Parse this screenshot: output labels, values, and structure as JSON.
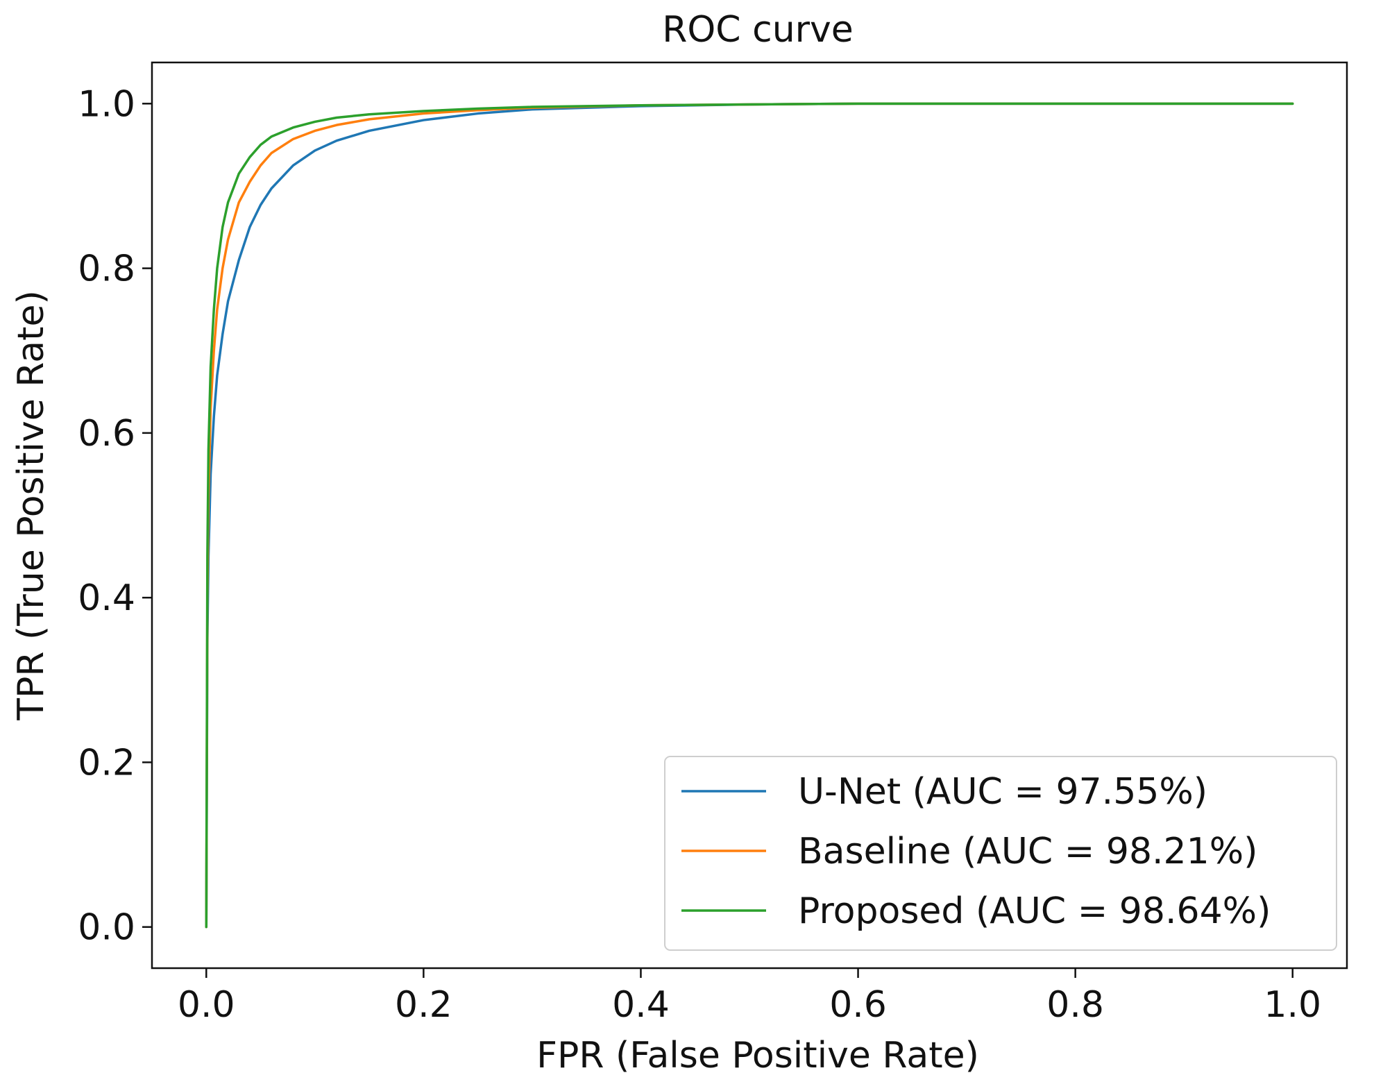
{
  "chart_data": {
    "type": "line",
    "title": "ROC curve",
    "xlabel": "FPR (False Positive Rate)",
    "ylabel": "TPR (True Positive Rate)",
    "xlim": [
      -0.05,
      1.05
    ],
    "ylim": [
      -0.05,
      1.05
    ],
    "xticks": [
      0.0,
      0.2,
      0.4,
      0.6,
      0.8,
      1.0
    ],
    "yticks": [
      0.0,
      0.2,
      0.4,
      0.6,
      0.8,
      1.0
    ],
    "xtick_labels": [
      "0.0",
      "0.2",
      "0.4",
      "0.6",
      "0.8",
      "1.0"
    ],
    "ytick_labels": [
      "0.0",
      "0.2",
      "0.4",
      "0.6",
      "0.8",
      "1.0"
    ],
    "grid": false,
    "legend_position": "lower-right",
    "series": [
      {
        "name": "U-Net (AUC = 97.55%)",
        "color": "#1f77b4",
        "x": [
          0.0,
          0.001,
          0.002,
          0.004,
          0.007,
          0.01,
          0.015,
          0.02,
          0.03,
          0.04,
          0.05,
          0.06,
          0.08,
          0.1,
          0.12,
          0.15,
          0.2,
          0.25,
          0.3,
          0.4,
          0.5,
          0.6,
          0.7,
          0.8,
          0.9,
          1.0
        ],
        "y": [
          0.0,
          0.35,
          0.45,
          0.55,
          0.62,
          0.67,
          0.72,
          0.76,
          0.81,
          0.85,
          0.877,
          0.897,
          0.925,
          0.943,
          0.955,
          0.967,
          0.98,
          0.988,
          0.993,
          0.997,
          0.999,
          1.0,
          1.0,
          1.0,
          1.0,
          1.0
        ]
      },
      {
        "name": "Baseline (AUC = 98.21%)",
        "color": "#ff7f0e",
        "x": [
          0.0,
          0.001,
          0.002,
          0.004,
          0.007,
          0.01,
          0.015,
          0.02,
          0.03,
          0.04,
          0.05,
          0.06,
          0.08,
          0.1,
          0.12,
          0.15,
          0.2,
          0.25,
          0.3,
          0.4,
          0.5,
          0.6,
          0.7,
          0.8,
          0.9,
          1.0
        ],
        "y": [
          0.0,
          0.4,
          0.52,
          0.63,
          0.7,
          0.75,
          0.8,
          0.835,
          0.88,
          0.905,
          0.925,
          0.94,
          0.957,
          0.967,
          0.974,
          0.981,
          0.988,
          0.992,
          0.995,
          0.998,
          0.999,
          1.0,
          1.0,
          1.0,
          1.0,
          1.0
        ]
      },
      {
        "name": "Proposed (AUC = 98.64%)",
        "color": "#2ca02c",
        "x": [
          0.0,
          0.001,
          0.002,
          0.004,
          0.007,
          0.01,
          0.015,
          0.02,
          0.03,
          0.04,
          0.05,
          0.06,
          0.08,
          0.1,
          0.12,
          0.15,
          0.2,
          0.25,
          0.3,
          0.4,
          0.5,
          0.6,
          0.7,
          0.8,
          0.9,
          1.0
        ],
        "y": [
          0.0,
          0.45,
          0.58,
          0.68,
          0.75,
          0.8,
          0.85,
          0.88,
          0.915,
          0.935,
          0.95,
          0.96,
          0.971,
          0.978,
          0.983,
          0.987,
          0.991,
          0.994,
          0.996,
          0.998,
          0.999,
          1.0,
          1.0,
          1.0,
          1.0,
          1.0
        ]
      }
    ]
  }
}
